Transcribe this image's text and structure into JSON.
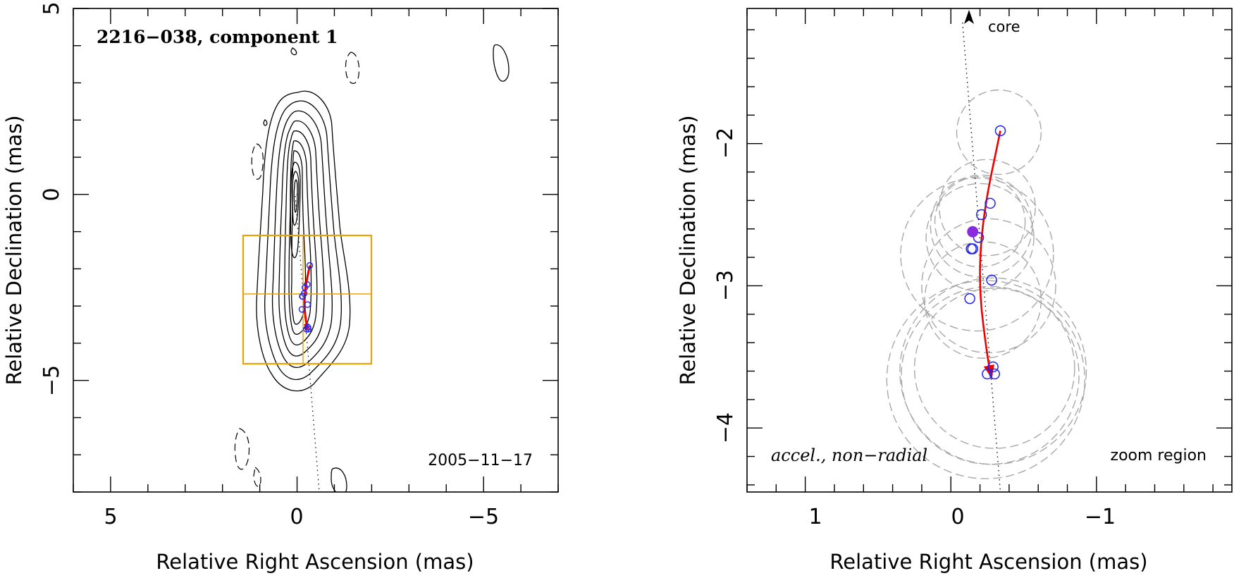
{
  "chart_data": [
    {
      "type": "contour",
      "title": "2216−038, component 1",
      "date_label": "2005−11−17",
      "xlabel": "Relative Right Ascension (mas)",
      "ylabel": "Relative Declination (mas)",
      "xlim": [
        6.0,
        -7.0
      ],
      "ylim": [
        -8.0,
        5.0
      ],
      "x_ticks": [
        5,
        0,
        -5
      ],
      "x_tick_labels": [
        "5",
        "0",
        "−5"
      ],
      "y_ticks": [
        5,
        0,
        -5
      ],
      "y_tick_labels": [
        "5",
        "0",
        "−5"
      ],
      "core_position": [
        0.0,
        0.0
      ],
      "component_positions": [
        [
          -0.34,
          -1.91
        ],
        [
          -0.27,
          -2.42
        ],
        [
          -0.21,
          -2.5
        ],
        [
          -0.19,
          -2.66
        ],
        [
          -0.15,
          -2.74
        ],
        [
          -0.14,
          -2.74
        ],
        [
          -0.28,
          -2.96
        ],
        [
          -0.13,
          -3.09
        ],
        [
          -0.29,
          -3.57
        ],
        [
          -0.25,
          -3.62
        ],
        [
          -0.3,
          -3.62
        ]
      ],
      "trajectory": [
        [
          -0.34,
          -1.91
        ],
        [
          -0.22,
          -2.5
        ],
        [
          -0.19,
          -3.0
        ],
        [
          -0.25,
          -3.5
        ],
        [
          -0.28,
          -3.65
        ]
      ],
      "zoom_region": {
        "x_range": [
          1.45,
          -1.95
        ],
        "y_range": [
          -1.05,
          -4.45
        ],
        "center": [
          0.15,
          -2.62
        ]
      }
    },
    {
      "type": "scatter",
      "xlabel": "Relative Right Ascension (mas)",
      "ylabel": "Relative Declination (mas)",
      "xlim": [
        1.4,
        -1.93
      ],
      "ylim": [
        -4.45,
        -1.05
      ],
      "x_ticks": [
        1,
        0,
        -1
      ],
      "x_tick_labels": [
        "1",
        "0",
        "−1"
      ],
      "y_ticks": [
        -2,
        -3,
        -4
      ],
      "y_tick_labels": [
        "−2",
        "−3",
        "−4"
      ],
      "core_label": "core",
      "annotation_left": "accel., non−radial",
      "annotation_right": "zoom region",
      "component_positions": [
        [
          -0.34,
          -1.91
        ],
        [
          -0.27,
          -2.42
        ],
        [
          -0.21,
          -2.5
        ],
        [
          -0.19,
          -2.66
        ],
        [
          -0.15,
          -2.74
        ],
        [
          -0.14,
          -2.74
        ],
        [
          -0.28,
          -2.96
        ],
        [
          -0.13,
          -3.09
        ],
        [
          -0.29,
          -3.57
        ],
        [
          -0.25,
          -3.62
        ],
        [
          -0.3,
          -3.62
        ]
      ],
      "reference_epoch_position": [
        -0.15,
        -2.62
      ],
      "component_sizes": [
        {
          "x": -0.33,
          "y": -1.92,
          "d": 0.58
        },
        {
          "x": -0.25,
          "y": -2.45,
          "d": 0.66
        },
        {
          "x": -0.21,
          "y": -2.58,
          "d": 0.7
        },
        {
          "x": -0.2,
          "y": -2.66,
          "d": 0.74
        },
        {
          "x": -0.2,
          "y": -2.55,
          "d": 0.62
        },
        {
          "x": -0.18,
          "y": -2.78,
          "d": 1.05
        },
        {
          "x": -0.26,
          "y": -3.0,
          "d": 0.92
        },
        {
          "x": -0.22,
          "y": -3.1,
          "d": 0.8
        },
        {
          "x": -0.29,
          "y": -3.6,
          "d": 1.28
        },
        {
          "x": -0.27,
          "y": -3.63,
          "d": 1.22
        },
        {
          "x": -0.24,
          "y": -3.66,
          "d": 1.36
        },
        {
          "x": -0.3,
          "y": -3.58,
          "d": 1.1
        }
      ],
      "trajectory": [
        [
          -0.34,
          -1.91
        ],
        [
          -0.22,
          -2.5
        ],
        [
          -0.19,
          -3.0
        ],
        [
          -0.25,
          -3.5
        ],
        [
          -0.28,
          -3.65
        ]
      ],
      "core_direction_line": [
        [
          -0.08,
          -1.05
        ],
        [
          -0.34,
          -4.45
        ]
      ]
    }
  ],
  "colors": {
    "trajectory": "#ee0000",
    "component_marker": "#2222ee",
    "reference_marker": "#8a2be2",
    "zoom_box": "#f0a000",
    "size_circles": "#a8a8a8",
    "axes": "#000000"
  }
}
